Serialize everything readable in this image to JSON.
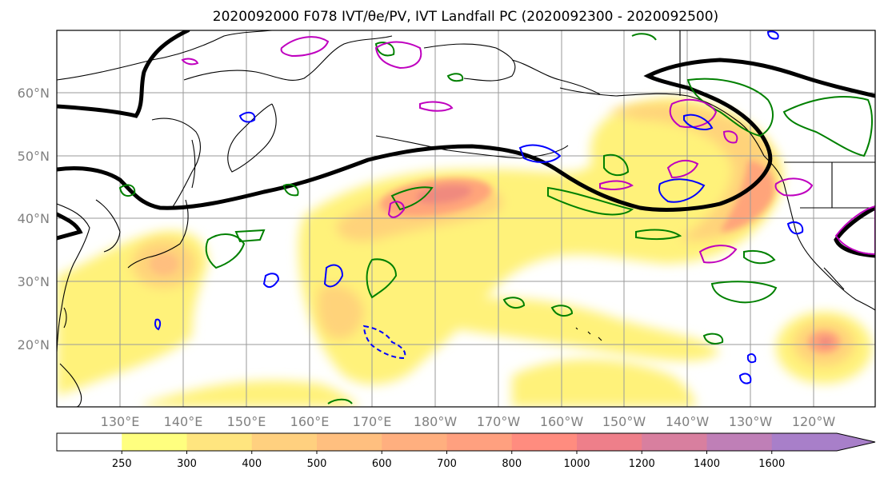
{
  "title": "2020092000 F078 IVT/θe/PV, IVT Landfall PC (2020092300 - 2020092500)",
  "map": {
    "lon_labels": [
      "130°E",
      "140°E",
      "150°E",
      "160°E",
      "170°E",
      "180°W",
      "170°W",
      "160°W",
      "150°W",
      "140°W",
      "130°W",
      "120°W"
    ],
    "lat_labels": [
      "60°N",
      "50°N",
      "40°N",
      "30°N",
      "20°N"
    ],
    "gridlines": true,
    "layers": [
      "IVT shading",
      "θe contours (black)",
      "PV contours (green, magenta, blue)",
      "coastlines"
    ]
  },
  "colorbar": {
    "levels": [
      "250",
      "300",
      "400",
      "500",
      "600",
      "700",
      "800",
      "1000",
      "1200",
      "1400",
      "1600"
    ],
    "colors": [
      "#ffffff",
      "#ffff7f",
      "#ffe57f",
      "#ffd07f",
      "#ffbf7f",
      "#ffaf7f",
      "#ffa07f",
      "#ff8c7f",
      "#ee7f8a",
      "#d87f9f",
      "#bf7fb7",
      "#a87fc9"
    ],
    "extend": "max"
  },
  "colors": {
    "thetae_contour": "#000000",
    "pv_green": "#008000",
    "pv_magenta": "#bf00bf",
    "pv_blue": "#0000ff",
    "coast": "#000000"
  }
}
